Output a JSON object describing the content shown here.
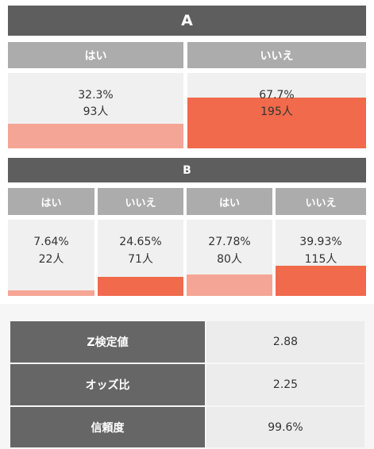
{
  "groupA": {
    "title": "A",
    "columns": [
      {
        "label": "はい",
        "percent": "32.3%",
        "count": "93人",
        "fill_pct": 32.3,
        "shade": "light"
      },
      {
        "label": "いいえ",
        "percent": "67.7%",
        "count": "195人",
        "fill_pct": 67.7,
        "shade": "dark"
      }
    ]
  },
  "groupB": {
    "title": "B",
    "columns": [
      {
        "label": "はい",
        "percent": "7.64%",
        "count": "22人",
        "fill_pct": 7.64,
        "shade": "light"
      },
      {
        "label": "いいえ",
        "percent": "24.65%",
        "count": "71人",
        "fill_pct": 24.65,
        "shade": "dark"
      },
      {
        "label": "はい",
        "percent": "27.78%",
        "count": "80人",
        "fill_pct": 27.78,
        "shade": "light"
      },
      {
        "label": "いいえ",
        "percent": "39.93%",
        "count": "115人",
        "fill_pct": 39.93,
        "shade": "dark"
      }
    ]
  },
  "stats": [
    {
      "label": "Z検定値",
      "value": "2.88"
    },
    {
      "label": "オッズ比",
      "value": "2.25"
    },
    {
      "label": "信頼度",
      "value": "99.6%"
    }
  ],
  "colors": {
    "header_dark": "#5e5e5e",
    "header_grey": "#acacac",
    "bar_light": "#f5a595",
    "bar_dark": "#f06a4b"
  }
}
